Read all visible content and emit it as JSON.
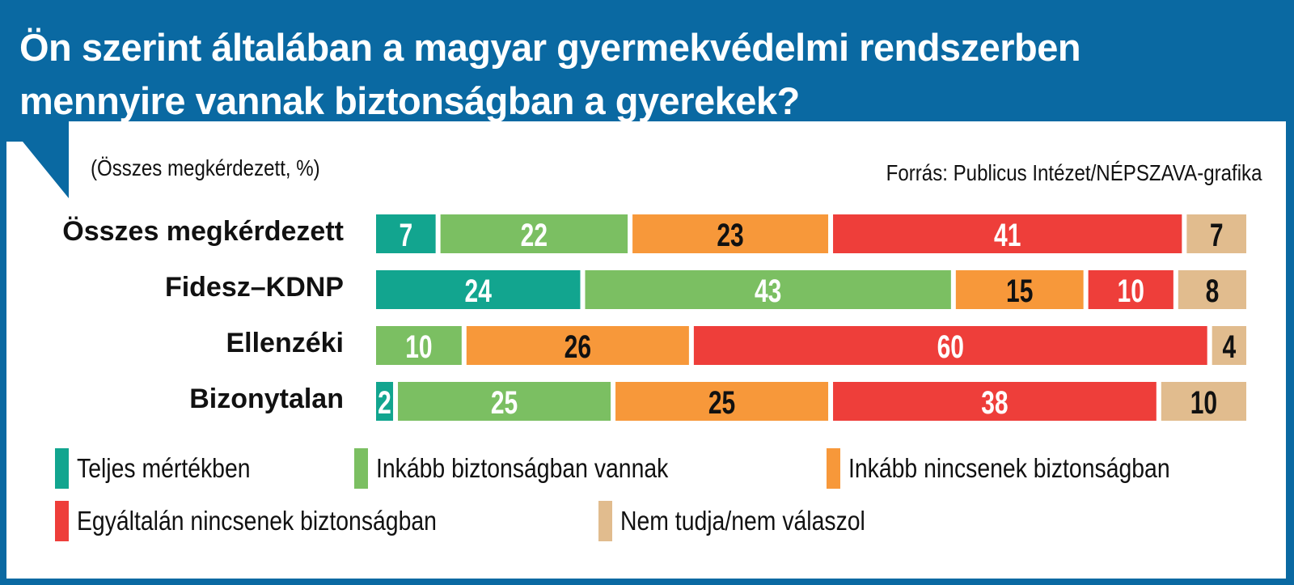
{
  "header": {
    "title_line1": "Ön szerint általában a magyar gyermekvédelmi rendszerben",
    "title_line2": "mennyire vannak biztonságban a gyerekek?"
  },
  "subtitle": "(Összes megkérdezett, %)",
  "source": "Forrás: Publicus Intézet/NÉPSZAVA-grafika",
  "chart_data": {
    "type": "bar",
    "stacked": true,
    "orientation": "horizontal",
    "title": "Ön szerint általában a magyar gyermekvédelmi rendszerben mennyire vannak biztonságban a gyerekek?",
    "unit": "%",
    "categories": [
      "Összes megkérdezett",
      "Fidesz–KDNP",
      "Ellenzéki",
      "Bizonytalan"
    ],
    "series": [
      {
        "name": "Teljes mértékben",
        "color": "#12a58f",
        "text_color": "#ffffff",
        "values": [
          7,
          24,
          0,
          2
        ]
      },
      {
        "name": "Inkább biztonságban vannak",
        "color": "#7bbf62",
        "text_color": "#ffffff",
        "values": [
          22,
          43,
          10,
          25
        ]
      },
      {
        "name": "Inkább nincsenek biztonságban",
        "color": "#f7983a",
        "text_color": "#111111",
        "values": [
          23,
          15,
          26,
          25
        ]
      },
      {
        "name": "Egyáltalán nincsenek biztonságban",
        "color": "#ee3e3a",
        "text_color": "#ffffff",
        "values": [
          41,
          10,
          60,
          38
        ]
      },
      {
        "name": "Nem tudja/nem válaszol",
        "color": "#e1bc8e",
        "text_color": "#111111",
        "values": [
          7,
          8,
          4,
          10
        ]
      }
    ],
    "xlim": [
      0,
      100
    ],
    "legend_position": "bottom"
  }
}
